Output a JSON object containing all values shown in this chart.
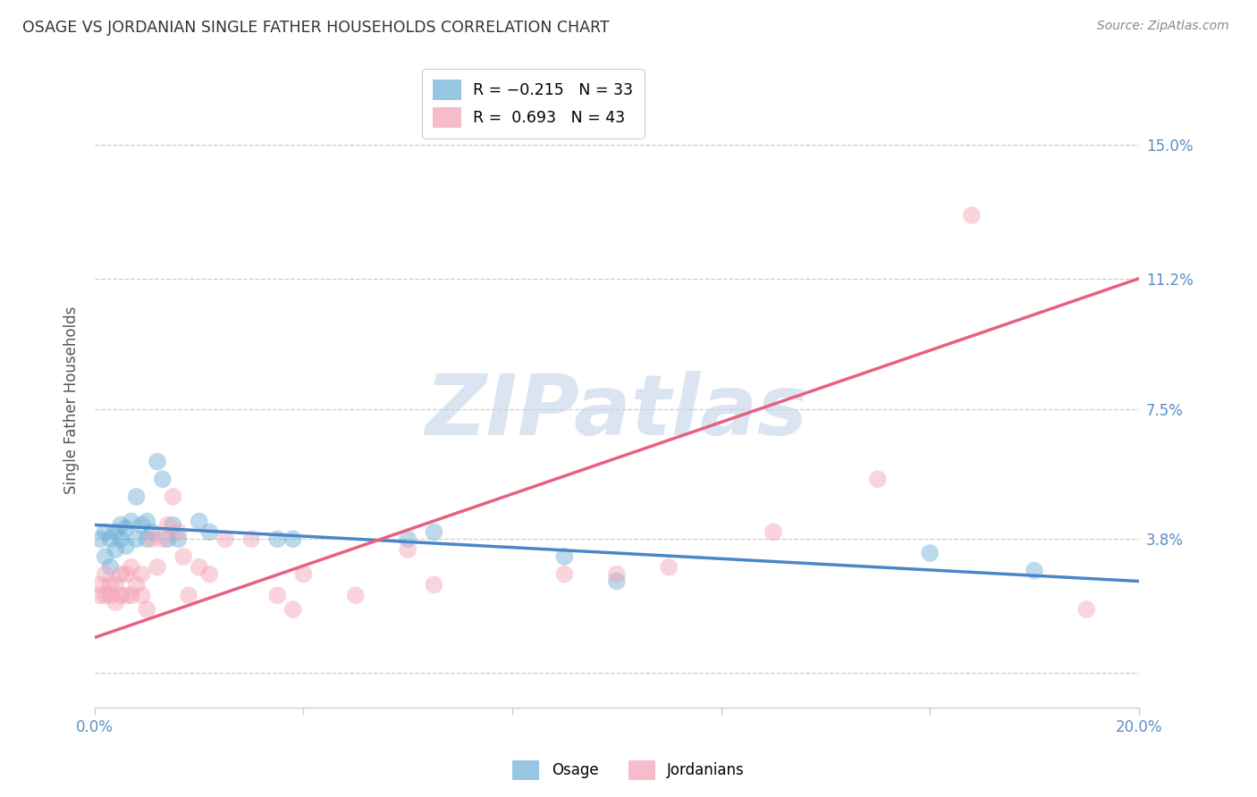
{
  "title": "OSAGE VS JORDANIAN SINGLE FATHER HOUSEHOLDS CORRELATION CHART",
  "source": "Source: ZipAtlas.com",
  "ylabel": "Single Father Households",
  "xlim": [
    0.0,
    0.2
  ],
  "ylim": [
    -0.01,
    0.165
  ],
  "ytick_positions": [
    0.0,
    0.038,
    0.075,
    0.112,
    0.15
  ],
  "ytick_labels": [
    "",
    "3.8%",
    "7.5%",
    "11.2%",
    "15.0%"
  ],
  "xtick_positions": [
    0.0,
    0.04,
    0.08,
    0.12,
    0.16,
    0.2
  ],
  "xtick_labels": [
    "0.0%",
    "",
    "",
    "",
    "",
    "20.0%"
  ],
  "osage_color": "#6baed6",
  "jordanian_color": "#f4a0b5",
  "watermark_text": "ZIPatlas",
  "legend_label1": "R = −0.215   N = 33",
  "legend_label2": "R =  0.693   N = 43",
  "osage_points": [
    [
      0.001,
      0.038
    ],
    [
      0.002,
      0.033
    ],
    [
      0.002,
      0.04
    ],
    [
      0.003,
      0.038
    ],
    [
      0.003,
      0.03
    ],
    [
      0.004,
      0.035
    ],
    [
      0.004,
      0.04
    ],
    [
      0.005,
      0.038
    ],
    [
      0.005,
      0.042
    ],
    [
      0.006,
      0.036
    ],
    [
      0.006,
      0.041
    ],
    [
      0.007,
      0.043
    ],
    [
      0.008,
      0.038
    ],
    [
      0.008,
      0.05
    ],
    [
      0.009,
      0.042
    ],
    [
      0.01,
      0.038
    ],
    [
      0.01,
      0.043
    ],
    [
      0.011,
      0.04
    ],
    [
      0.012,
      0.06
    ],
    [
      0.013,
      0.055
    ],
    [
      0.014,
      0.038
    ],
    [
      0.015,
      0.042
    ],
    [
      0.016,
      0.038
    ],
    [
      0.02,
      0.043
    ],
    [
      0.022,
      0.04
    ],
    [
      0.035,
      0.038
    ],
    [
      0.038,
      0.038
    ],
    [
      0.06,
      0.038
    ],
    [
      0.065,
      0.04
    ],
    [
      0.09,
      0.033
    ],
    [
      0.1,
      0.026
    ],
    [
      0.16,
      0.034
    ],
    [
      0.18,
      0.029
    ]
  ],
  "jordanian_points": [
    [
      0.001,
      0.022
    ],
    [
      0.001,
      0.025
    ],
    [
      0.002,
      0.022
    ],
    [
      0.002,
      0.028
    ],
    [
      0.003,
      0.022
    ],
    [
      0.003,
      0.025
    ],
    [
      0.004,
      0.02
    ],
    [
      0.004,
      0.025
    ],
    [
      0.005,
      0.022
    ],
    [
      0.005,
      0.028
    ],
    [
      0.006,
      0.022
    ],
    [
      0.006,
      0.028
    ],
    [
      0.007,
      0.022
    ],
    [
      0.007,
      0.03
    ],
    [
      0.008,
      0.025
    ],
    [
      0.009,
      0.022
    ],
    [
      0.009,
      0.028
    ],
    [
      0.01,
      0.018
    ],
    [
      0.011,
      0.038
    ],
    [
      0.012,
      0.03
    ],
    [
      0.013,
      0.038
    ],
    [
      0.014,
      0.042
    ],
    [
      0.015,
      0.05
    ],
    [
      0.016,
      0.04
    ],
    [
      0.017,
      0.033
    ],
    [
      0.018,
      0.022
    ],
    [
      0.02,
      0.03
    ],
    [
      0.022,
      0.028
    ],
    [
      0.025,
      0.038
    ],
    [
      0.03,
      0.038
    ],
    [
      0.035,
      0.022
    ],
    [
      0.038,
      0.018
    ],
    [
      0.04,
      0.028
    ],
    [
      0.05,
      0.022
    ],
    [
      0.06,
      0.035
    ],
    [
      0.065,
      0.025
    ],
    [
      0.09,
      0.028
    ],
    [
      0.1,
      0.028
    ],
    [
      0.11,
      0.03
    ],
    [
      0.13,
      0.04
    ],
    [
      0.15,
      0.055
    ],
    [
      0.168,
      0.13
    ],
    [
      0.19,
      0.018
    ]
  ],
  "osage_line": [
    0.0,
    0.042,
    0.2,
    0.026
  ],
  "jordanian_line": [
    0.0,
    0.01,
    0.2,
    0.112
  ],
  "background_color": "#ffffff",
  "grid_color": "#cccccc",
  "tick_label_color": "#5b8ec4",
  "title_color": "#333333",
  "source_color": "#888888",
  "ylabel_color": "#555555"
}
